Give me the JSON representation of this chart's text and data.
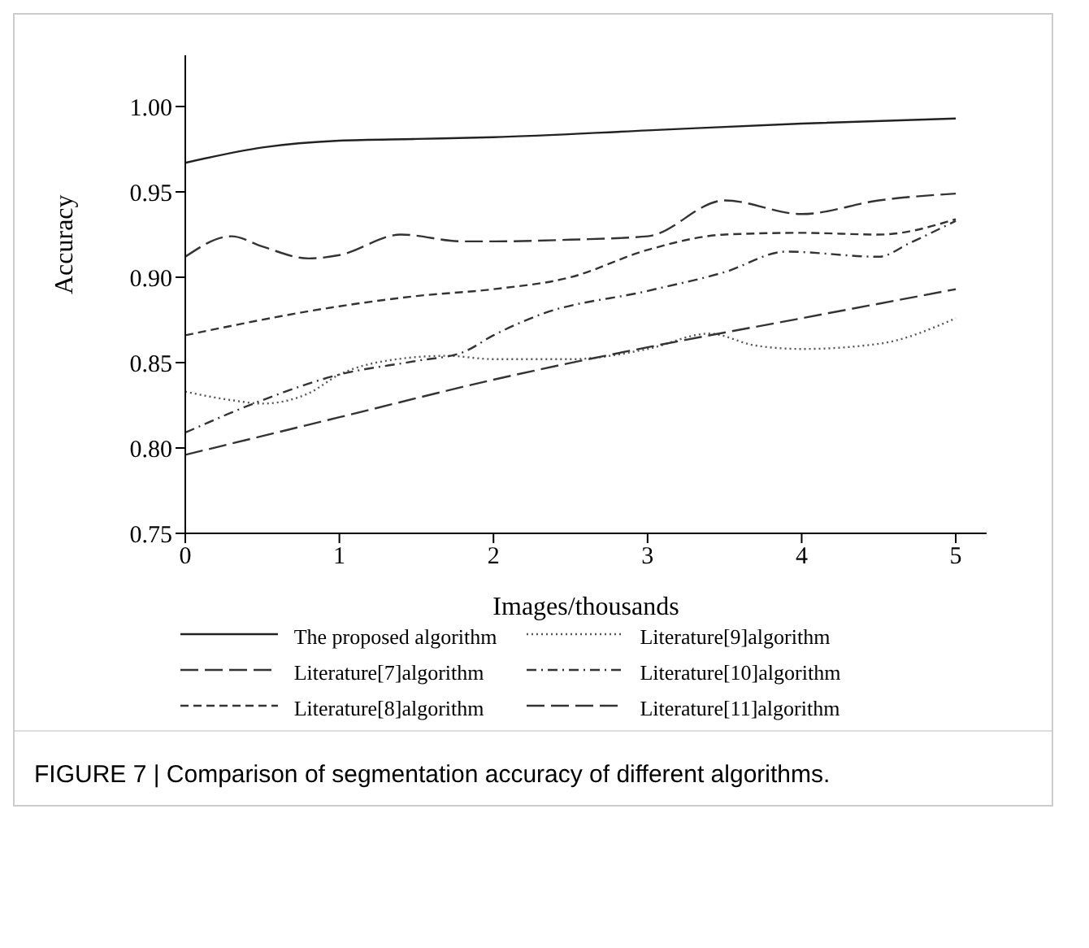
{
  "chart_data": {
    "type": "line",
    "xlabel": "Images/thousands",
    "ylabel": "Accuracy",
    "xlim": [
      0,
      5.2
    ],
    "xticks": [
      0,
      1,
      2,
      3,
      4,
      5
    ],
    "ylim": [
      0.75,
      1.03
    ],
    "yticks": [
      {
        "value": 0.75,
        "label": "0.75"
      },
      {
        "value": 0.8,
        "label": "0.80"
      },
      {
        "value": 0.85,
        "label": "0.85"
      },
      {
        "value": 0.9,
        "label": "0.90"
      },
      {
        "value": 0.95,
        "label": "0.95"
      },
      {
        "value": 1.0,
        "label": "1.00"
      }
    ],
    "legend": "bottom",
    "marker": "none",
    "series": [
      {
        "name": "The proposed algorithm",
        "color": "#222222",
        "line_style": "solid",
        "x": [
          0,
          0.5,
          1,
          1.5,
          2,
          3,
          4,
          5
        ],
        "values": [
          0.967,
          0.976,
          0.98,
          0.981,
          0.982,
          0.986,
          0.99,
          0.993
        ]
      },
      {
        "name": "Literature[9]algorithm",
        "color": "#555555",
        "line_style": "dotted",
        "x": [
          0,
          0.3,
          0.5,
          0.8,
          1,
          1.3,
          1.7,
          2,
          2.5,
          3,
          3.4,
          3.7,
          4,
          4.5,
          5
        ],
        "values": [
          0.833,
          0.828,
          0.826,
          0.832,
          0.843,
          0.851,
          0.854,
          0.852,
          0.852,
          0.858,
          0.867,
          0.86,
          0.858,
          0.861,
          0.876
        ]
      },
      {
        "name": "Literature[7]algorithm",
        "color": "#333333",
        "line_style": "longdash",
        "x": [
          0,
          0.3,
          0.5,
          0.8,
          1,
          1.4,
          1.8,
          2,
          2.5,
          3,
          3.5,
          4,
          4.5,
          5
        ],
        "values": [
          0.912,
          0.924,
          0.918,
          0.911,
          0.913,
          0.925,
          0.921,
          0.921,
          0.922,
          0.924,
          0.945,
          0.937,
          0.945,
          0.949
        ]
      },
      {
        "name": "Literature[10]algorithm",
        "color": "#333333",
        "line_style": "dashdot",
        "x": [
          0,
          0.5,
          1,
          1.5,
          1.8,
          2,
          2.3,
          3,
          3.5,
          3.9,
          4.5,
          4.7,
          5
        ],
        "values": [
          0.809,
          0.828,
          0.843,
          0.851,
          0.856,
          0.866,
          0.878,
          0.892,
          0.903,
          0.915,
          0.912,
          0.92,
          0.933
        ]
      },
      {
        "name": "Literature[8]algorithm",
        "color": "#333333",
        "line_style": "dashed",
        "x": [
          0,
          1,
          1.5,
          2,
          2.5,
          3,
          3.5,
          4,
          4.5,
          5
        ],
        "values": [
          0.866,
          0.883,
          0.889,
          0.893,
          0.9,
          0.916,
          0.925,
          0.926,
          0.925,
          0.934
        ]
      },
      {
        "name": "Literature[11]algorithm",
        "color": "#333333",
        "line_style": "longdash",
        "x": [
          0,
          1,
          2,
          3,
          4,
          5
        ],
        "values": [
          0.796,
          0.818,
          0.84,
          0.859,
          0.876,
          0.893
        ]
      }
    ],
    "annotations": [
      "FIGURE 7 | Comparison of segmentation accuracy of different algorithms."
    ]
  }
}
